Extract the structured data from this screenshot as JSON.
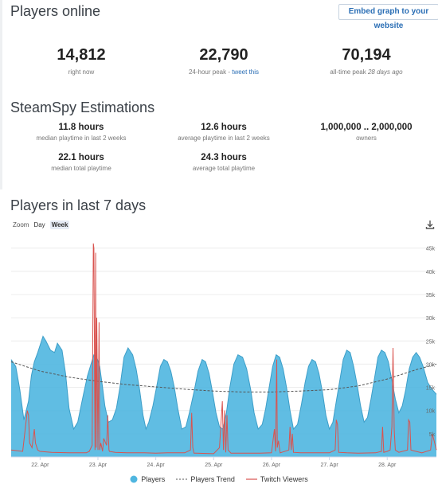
{
  "header": {
    "title": "Players online",
    "embed_label": "Embed graph to your website"
  },
  "stats": [
    {
      "value": "14,812",
      "label": "right now"
    },
    {
      "value": "22,790",
      "label": "24-hour peak - ",
      "link": "tweet this"
    },
    {
      "value": "70,194",
      "label": "all-time peak ",
      "italic": "28 days ago"
    }
  ],
  "steamspy": {
    "title": "SteamSpy Estimations",
    "items": [
      {
        "value": "11.8 hours",
        "label": "median playtime in last 2 weeks"
      },
      {
        "value": "12.6 hours",
        "label": "average playtime in last 2 weeks"
      },
      {
        "value": "1,000,000 .. 2,000,000",
        "label": "owners"
      },
      {
        "value": "22.1 hours",
        "label": "median total playtime"
      },
      {
        "value": "24.3 hours",
        "label": "average total playtime"
      }
    ]
  },
  "graph_section": {
    "title": "Players in last 7 days",
    "zoom_label": "Zoom",
    "zoom_options": [
      "Day",
      "Week"
    ],
    "active_zoom": "Week",
    "download_icon": "download-icon"
  },
  "colors": {
    "players": "#4fb6e0",
    "players_line": "#3d9ec8",
    "trend": "#555555",
    "twitch": "#d9534f",
    "link": "#2a6eb5"
  },
  "chart_data": {
    "type": "area",
    "ylim": [
      0,
      47000
    ],
    "yticks": [
      "5k",
      "10k",
      "15k",
      "20k",
      "25k",
      "30k",
      "35k",
      "40k",
      "45k"
    ],
    "ytick_values": [
      5000,
      10000,
      15000,
      20000,
      25000,
      30000,
      35000,
      40000,
      45000
    ],
    "xlim": [
      21.5,
      28.85
    ],
    "xticks": [
      "22. Apr",
      "23. Apr",
      "24. Apr",
      "25. Apr",
      "26. Apr",
      "27. Apr",
      "28. Apr"
    ],
    "xtick_values": [
      22,
      23,
      24,
      25,
      26,
      27,
      28
    ],
    "legend": [
      "Players",
      "Players Trend",
      "Twitch Viewers"
    ],
    "series": [
      {
        "name": "Players",
        "x": [
          21.5,
          21.58,
          21.65,
          21.72,
          21.8,
          21.85,
          21.9,
          21.96,
          22.05,
          22.1,
          22.18,
          22.25,
          22.3,
          22.38,
          22.44,
          22.5,
          22.58,
          22.65,
          22.75,
          22.82,
          22.88,
          22.93,
          22.98,
          23.03,
          23.08,
          23.12,
          23.18,
          23.25,
          23.32,
          23.38,
          23.45,
          23.52,
          23.6,
          23.66,
          23.72,
          23.78,
          23.83,
          23.88,
          23.95,
          24.02,
          24.08,
          24.14,
          24.2,
          24.26,
          24.32,
          24.38,
          24.45,
          24.52,
          24.58,
          24.66,
          24.73,
          24.8,
          24.86,
          24.92,
          24.98,
          25.04,
          25.1,
          25.16,
          25.22,
          25.28,
          25.35,
          25.42,
          25.5,
          25.57,
          25.64,
          25.7,
          25.77,
          25.84,
          25.9,
          25.96,
          26.02,
          26.08,
          26.14,
          26.2,
          26.26,
          26.32,
          26.38,
          26.45,
          26.52,
          26.58,
          26.64,
          26.7,
          26.76,
          26.82,
          26.88,
          26.94,
          27.0,
          27.06,
          27.12,
          27.18,
          27.24,
          27.3,
          27.36,
          27.42,
          27.48,
          27.54,
          27.6,
          27.66,
          27.72,
          27.78,
          27.84,
          27.9,
          27.96,
          28.02,
          28.08,
          28.14,
          28.2,
          28.26,
          28.32,
          28.38,
          28.44,
          28.5,
          28.56,
          28.62,
          28.7,
          28.78,
          28.85
        ],
        "values": [
          21000,
          19500,
          14500,
          8000,
          12000,
          17500,
          20500,
          22500,
          26000,
          25000,
          23000,
          22500,
          24500,
          23000,
          18000,
          10500,
          6000,
          7500,
          13500,
          17500,
          20000,
          22000,
          21500,
          19500,
          15000,
          11000,
          7500,
          8000,
          10500,
          15000,
          21500,
          23500,
          22000,
          19000,
          14500,
          9000,
          6000,
          7500,
          11000,
          15500,
          19500,
          21000,
          20500,
          18500,
          15000,
          10500,
          6000,
          6500,
          9500,
          14000,
          18500,
          21000,
          20500,
          18000,
          14000,
          9500,
          6500,
          6000,
          9500,
          15000,
          20000,
          22000,
          21500,
          19000,
          14500,
          9500,
          6000,
          7000,
          10500,
          15000,
          19500,
          22000,
          21500,
          19000,
          15000,
          10000,
          6000,
          7000,
          11500,
          16000,
          19500,
          21000,
          20500,
          18000,
          14000,
          9000,
          6000,
          7500,
          12000,
          16500,
          21000,
          23000,
          22500,
          19500,
          15500,
          11000,
          7500,
          8500,
          12500,
          17000,
          21500,
          23000,
          22500,
          20500,
          16500,
          12500,
          9500,
          11000,
          14500,
          19000,
          21500,
          22500,
          21500,
          19500,
          16000,
          14500,
          13500
        ]
      },
      {
        "name": "Players Trend",
        "x": [
          21.5,
          22.0,
          22.5,
          23.0,
          23.5,
          24.0,
          24.5,
          25.0,
          25.5,
          26.0,
          26.5,
          27.0,
          27.5,
          28.0,
          28.5,
          28.85
        ],
        "values": [
          20500,
          18500,
          17200,
          16300,
          15600,
          15100,
          14600,
          14200,
          14000,
          14000,
          14200,
          14500,
          15300,
          16800,
          18800,
          20000
        ]
      },
      {
        "name": "Twitch Viewers",
        "x": [
          21.5,
          21.7,
          21.78,
          21.8,
          21.82,
          21.86,
          21.9,
          21.92,
          21.96,
          22.0,
          22.2,
          22.5,
          22.8,
          22.85,
          22.9,
          22.92,
          22.93,
          22.95,
          22.96,
          22.97,
          22.98,
          23.0,
          23.02,
          23.03,
          23.05,
          23.08,
          23.1,
          23.15,
          23.17,
          23.19,
          23.2,
          23.3,
          23.5,
          23.8,
          24.0,
          24.2,
          24.5,
          24.6,
          24.62,
          24.64,
          24.66,
          24.7,
          25.0,
          25.1,
          25.15,
          25.17,
          25.19,
          25.21,
          25.23,
          25.25,
          25.3,
          25.5,
          25.8,
          26.0,
          26.05,
          26.07,
          26.09,
          26.1,
          26.12,
          26.15,
          26.3,
          26.32,
          26.34,
          26.36,
          26.38,
          26.5,
          26.8,
          27.0,
          27.1,
          27.12,
          27.14,
          27.16,
          27.3,
          27.5,
          27.8,
          27.9,
          27.92,
          27.94,
          28.0,
          28.05,
          28.08,
          28.1,
          28.12,
          28.14,
          28.2,
          28.35,
          28.37,
          28.39,
          28.41,
          28.6,
          28.75,
          28.78,
          28.8,
          28.85
        ],
        "values": [
          1500,
          1200,
          10000,
          9000,
          3000,
          2000,
          6000,
          3000,
          1500,
          1200,
          1000,
          900,
          900,
          1200,
          2500,
          46000,
          45000,
          1500,
          44000,
          2000,
          30000,
          1500,
          29000,
          1500,
          3000,
          1200,
          4000,
          2500,
          9000,
          1500,
          1200,
          1000,
          900,
          900,
          800,
          900,
          900,
          1500,
          9500,
          2000,
          800,
          800,
          700,
          2000,
          12000,
          1500,
          10000,
          1000,
          9000,
          1500,
          800,
          800,
          800,
          900,
          6000,
          1200,
          21000,
          2000,
          3500,
          900,
          1500,
          6500,
          1500,
          5000,
          1000,
          900,
          900,
          900,
          1500,
          8000,
          7000,
          1000,
          900,
          800,
          900,
          1200,
          6500,
          1000,
          1200,
          1500,
          6500,
          23500,
          6000,
          1500,
          1000,
          1500,
          8000,
          7500,
          1500,
          900,
          1500,
          5000,
          4000,
          1500
        ]
      }
    ]
  }
}
